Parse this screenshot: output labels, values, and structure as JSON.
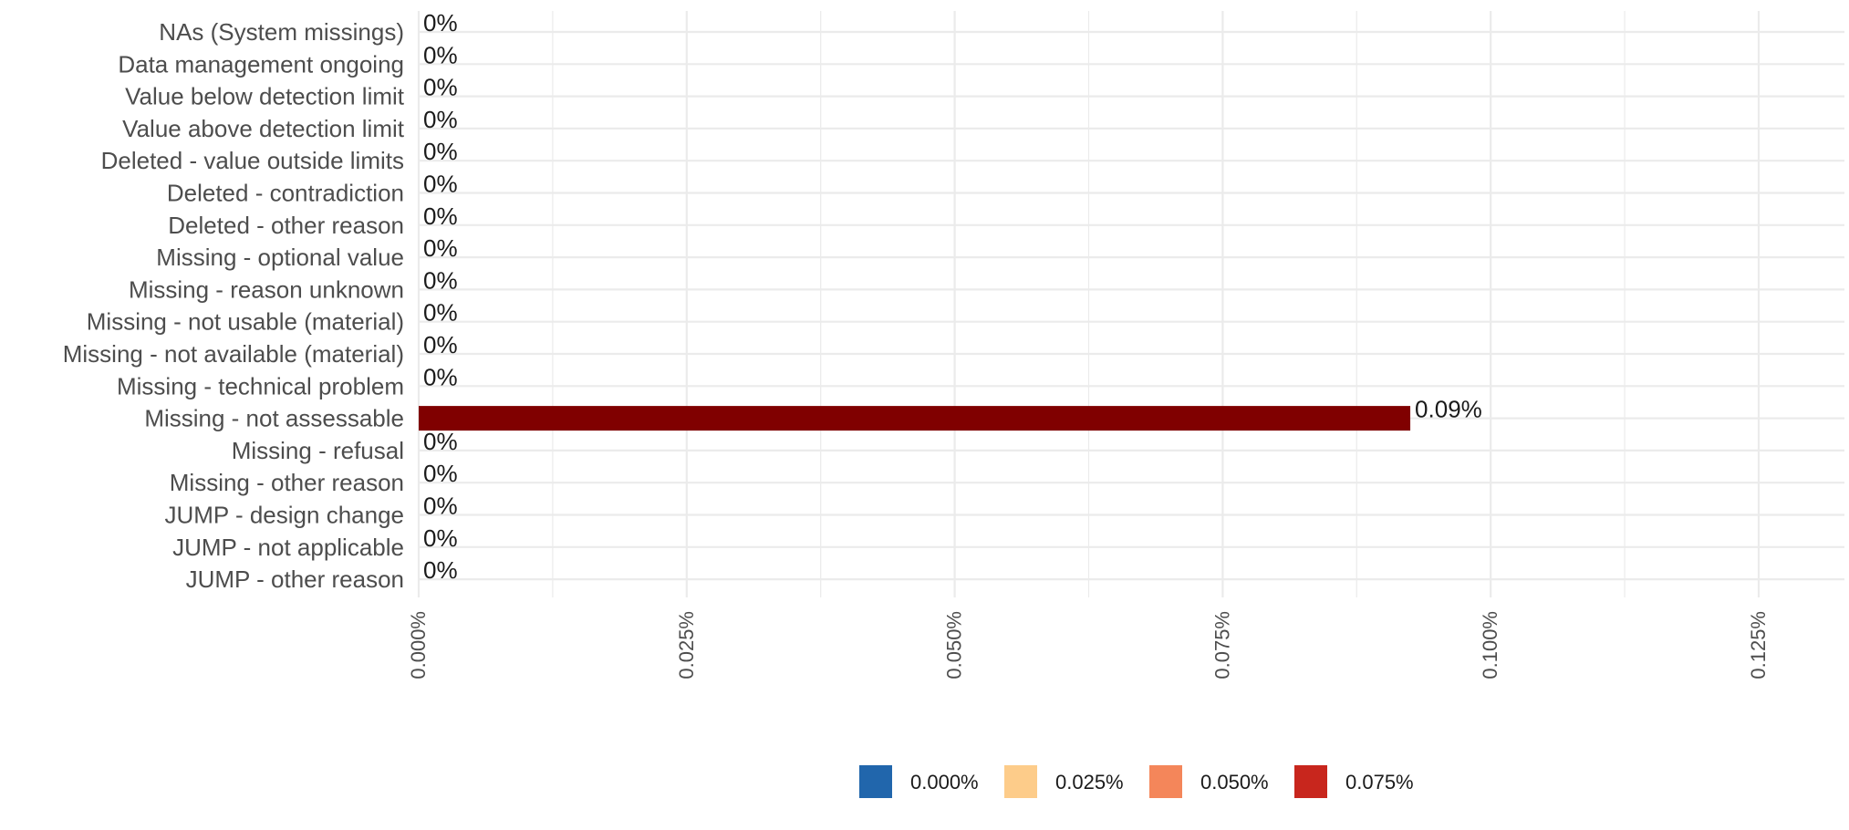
{
  "chart_data": {
    "type": "bar",
    "orientation": "horizontal",
    "title": "",
    "xlabel": "",
    "ylabel": "",
    "categories": [
      "NAs (System missings)",
      "Data management ongoing",
      "Value below detection limit",
      "Value above detection limit",
      "Deleted - value outside limits",
      "Deleted - contradiction",
      "Deleted - other reason",
      "Missing - optional value",
      "Missing - reason unknown",
      "Missing - not usable (material)",
      "Missing - not available (material)",
      "Missing - technical problem",
      "Missing - not assessable",
      "Missing - refusal",
      "Missing - other reason",
      "JUMP - design change",
      "JUMP - not applicable",
      "JUMP - other reason"
    ],
    "values": [
      0,
      0,
      0,
      0,
      0,
      0,
      0,
      0,
      0,
      0,
      0,
      0,
      0.0925,
      0,
      0,
      0,
      0,
      0
    ],
    "data_labels": [
      "0%",
      "0%",
      "0%",
      "0%",
      "0%",
      "0%",
      "0%",
      "0%",
      "0%",
      "0%",
      "0%",
      "0%",
      "0.09%",
      "0%",
      "0%",
      "0%",
      "0%",
      "0%"
    ],
    "xlim": [
      0,
      0.133
    ],
    "x_ticks": [
      0,
      0.025,
      0.05,
      0.075,
      0.1,
      0.125
    ],
    "x_tick_labels": [
      "0.000%",
      "0.025%",
      "0.050%",
      "0.075%",
      "0.100%",
      "0.125%"
    ],
    "grid": true,
    "legend": {
      "placement": "bottom",
      "items": [
        {
          "label": "0.000%",
          "color": "#2166ac"
        },
        {
          "label": "0.025%",
          "color": "#fdcc8a"
        },
        {
          "label": "0.050%",
          "color": "#f4865a"
        },
        {
          "label": "0.075%",
          "color": "#c8261d"
        }
      ]
    },
    "bar_color": "#800000"
  }
}
